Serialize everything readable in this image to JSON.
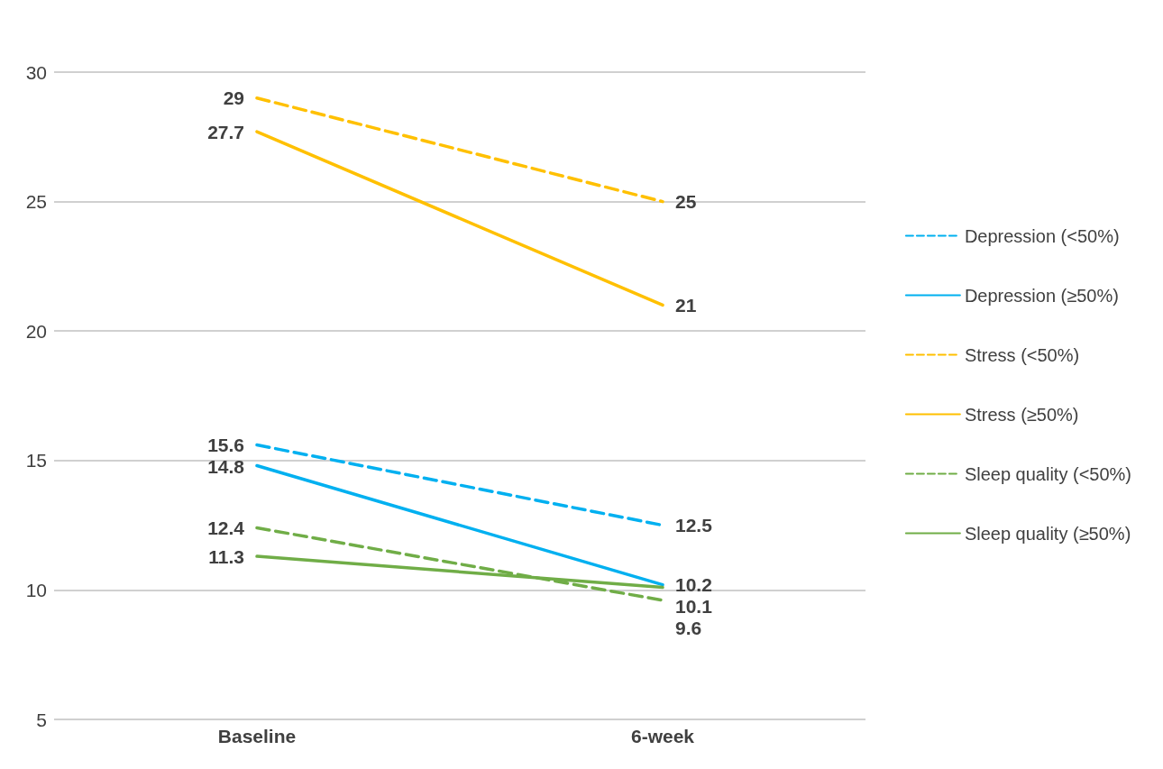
{
  "chart_data": {
    "type": "line",
    "categories": [
      "Baseline",
      "6-week"
    ],
    "series": [
      {
        "name": "Depression (<50%)",
        "color": "#00b0f0",
        "line_style": "dashed",
        "values": [
          15.6,
          12.5
        ]
      },
      {
        "name": "Depression (≥50%)",
        "color": "#00b0f0",
        "line_style": "solid",
        "values": [
          14.8,
          10.2
        ]
      },
      {
        "name": "Stress (<50%)",
        "color": "#ffc000",
        "line_style": "dashed",
        "values": [
          29,
          25
        ]
      },
      {
        "name": "Stress (≥50%)",
        "color": "#ffc000",
        "line_style": "solid",
        "values": [
          27.7,
          21
        ]
      },
      {
        "name": "Sleep quality (<50%)",
        "color": "#70ad47",
        "line_style": "dashed",
        "values": [
          12.4,
          9.6
        ]
      },
      {
        "name": "Sleep quality (≥50%)",
        "color": "#70ad47",
        "line_style": "solid",
        "values": [
          11.3,
          10.1
        ]
      }
    ],
    "ylim": [
      5,
      30
    ],
    "yticks": [
      5,
      10,
      15,
      20,
      25,
      30
    ],
    "grid": "y",
    "legend": "right",
    "marker": "none",
    "data_labels": true
  }
}
